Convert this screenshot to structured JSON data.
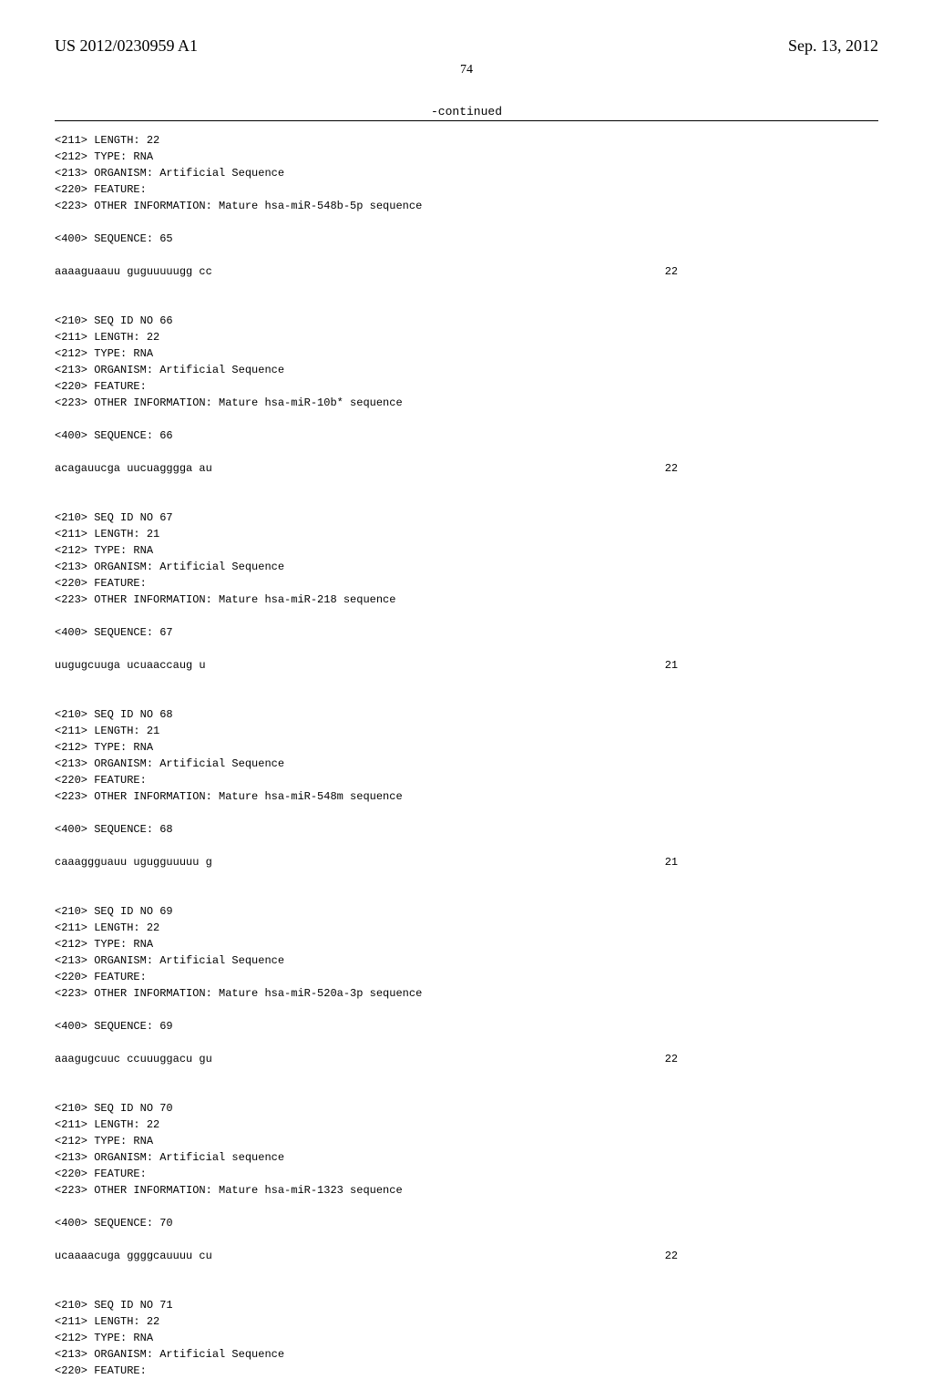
{
  "header": {
    "pub_number": "US 2012/0230959 A1",
    "pub_date": "Sep. 13, 2012"
  },
  "page_number": "74",
  "continued_label": "-continued",
  "entries": [
    {
      "meta": [
        "<211> LENGTH: 22",
        "<212> TYPE: RNA",
        "<213> ORGANISM: Artificial Sequence",
        "<220> FEATURE:",
        "<223> OTHER INFORMATION: Mature hsa-miR-548b-5p sequence"
      ],
      "seq_label": "<400> SEQUENCE: 65",
      "sequence": "aaaaguaauu guguuuuugg cc",
      "seq_end": "22"
    },
    {
      "meta": [
        "<210> SEQ ID NO 66",
        "<211> LENGTH: 22",
        "<212> TYPE: RNA",
        "<213> ORGANISM: Artificial Sequence",
        "<220> FEATURE:",
        "<223> OTHER INFORMATION: Mature hsa-miR-10b* sequence"
      ],
      "seq_label": "<400> SEQUENCE: 66",
      "sequence": "acagauucga uucuagggga au",
      "seq_end": "22"
    },
    {
      "meta": [
        "<210> SEQ ID NO 67",
        "<211> LENGTH: 21",
        "<212> TYPE: RNA",
        "<213> ORGANISM: Artificial Sequence",
        "<220> FEATURE:",
        "<223> OTHER INFORMATION: Mature hsa-miR-218 sequence"
      ],
      "seq_label": "<400> SEQUENCE: 67",
      "sequence": "uugugcuuga ucuaaccaug u",
      "seq_end": "21"
    },
    {
      "meta": [
        "<210> SEQ ID NO 68",
        "<211> LENGTH: 21",
        "<212> TYPE: RNA",
        "<213> ORGANISM: Artificial Sequence",
        "<220> FEATURE:",
        "<223> OTHER INFORMATION: Mature hsa-miR-548m sequence"
      ],
      "seq_label": "<400> SEQUENCE: 68",
      "sequence": "caaaggguauu ugugguuuuu g",
      "seq_end": "21"
    },
    {
      "meta": [
        "<210> SEQ ID NO 69",
        "<211> LENGTH: 22",
        "<212> TYPE: RNA",
        "<213> ORGANISM: Artificial Sequence",
        "<220> FEATURE:",
        "<223> OTHER INFORMATION: Mature hsa-miR-520a-3p sequence"
      ],
      "seq_label": "<400> SEQUENCE: 69",
      "sequence": "aaagugcuuc ccuuuggacu gu",
      "seq_end": "22"
    },
    {
      "meta": [
        "<210> SEQ ID NO 70",
        "<211> LENGTH: 22",
        "<212> TYPE: RNA",
        "<213> ORGANISM: Artificial sequence",
        "<220> FEATURE:",
        "<223> OTHER INFORMATION: Mature hsa-miR-1323 sequence"
      ],
      "seq_label": "<400> SEQUENCE: 70",
      "sequence": "ucaaaacuga ggggcauuuu cu",
      "seq_end": "22"
    },
    {
      "meta": [
        "<210> SEQ ID NO 71",
        "<211> LENGTH: 22",
        "<212> TYPE: RNA",
        "<213> ORGANISM: Artificial Sequence",
        "<220> FEATURE:"
      ],
      "seq_label": "",
      "sequence": "",
      "seq_end": ""
    }
  ]
}
